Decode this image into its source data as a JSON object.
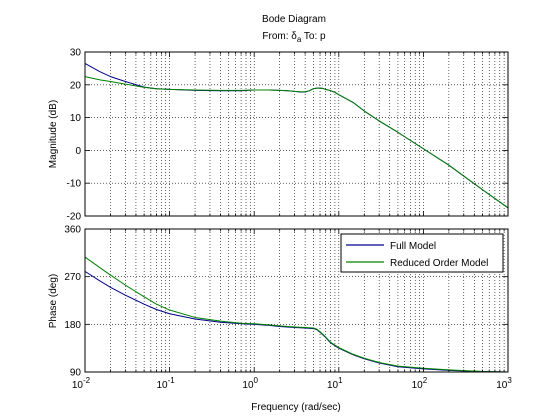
{
  "chart_data": [
    {
      "type": "line",
      "panel": "magnitude",
      "title": "Bode Diagram",
      "subtitle_prefix": "From: δ",
      "subtitle_subscript": "a",
      "subtitle_suffix": " To: p",
      "ylabel": "Magnitude (dB)",
      "xscale": "log",
      "xlim": [
        0.01,
        1000
      ],
      "ylim": [
        -20,
        30
      ],
      "yticks": [
        "30",
        "20",
        "10",
        "0",
        "-10",
        "-20"
      ],
      "grid": true,
      "series": [
        {
          "name": "Full Model",
          "color": "#00008b",
          "x": [
            0.01,
            0.015,
            0.02,
            0.03,
            0.05,
            0.07,
            0.1,
            0.2,
            0.4,
            0.7,
            1,
            1.5,
            2,
            2.5,
            3,
            3.5,
            4,
            4.5,
            5,
            5.5,
            6,
            6.5,
            7,
            8,
            9,
            10,
            15,
            20,
            30,
            50,
            100,
            200,
            500,
            1000
          ],
          "y": [
            26.5,
            24.0,
            22.5,
            21.0,
            19.3,
            18.8,
            18.6,
            18.3,
            18.2,
            18.2,
            18.4,
            18.4,
            18.3,
            18.2,
            18.0,
            17.8,
            17.8,
            18.2,
            18.8,
            19.0,
            19.0,
            18.9,
            18.6,
            18.2,
            17.7,
            17.0,
            14.5,
            12.0,
            9.0,
            5.5,
            0.5,
            -4.5,
            -12.0,
            -17.5
          ]
        },
        {
          "name": "Reduced Order Model",
          "color": "#008000",
          "x": [
            0.01,
            0.015,
            0.02,
            0.03,
            0.05,
            0.07,
            0.1,
            0.2,
            0.4,
            0.7,
            1,
            1.5,
            2,
            2.5,
            3,
            3.5,
            4,
            4.5,
            5,
            5.5,
            6,
            6.5,
            7,
            8,
            9,
            10,
            15,
            20,
            30,
            50,
            100,
            200,
            500,
            1000
          ],
          "y": [
            22.5,
            21.5,
            21.0,
            20.2,
            19.2,
            18.8,
            18.6,
            18.4,
            18.3,
            18.3,
            18.4,
            18.4,
            18.3,
            18.2,
            18.0,
            17.9,
            17.9,
            18.2,
            18.8,
            19.0,
            19.0,
            18.9,
            18.6,
            18.2,
            17.7,
            17.0,
            14.5,
            12.0,
            9.0,
            5.5,
            0.5,
            -4.5,
            -12.0,
            -17.5
          ]
        }
      ]
    },
    {
      "type": "line",
      "panel": "phase",
      "xlabel": "Frequency  (rad/sec)",
      "ylabel": "Phase (deg)",
      "xscale": "log",
      "xlim": [
        0.01,
        1000
      ],
      "ylim": [
        90,
        360
      ],
      "yticks": [
        "360",
        "270",
        "180",
        "90"
      ],
      "xticks_base": [
        "10",
        "10",
        "10",
        "10",
        "10",
        "10"
      ],
      "xticks_exp": [
        "-2",
        "-1",
        "0",
        "1",
        "2",
        "3"
      ],
      "grid": true,
      "legend_position": "top-right",
      "series": [
        {
          "name": "Full Model",
          "color": "#00008b",
          "x": [
            0.01,
            0.015,
            0.02,
            0.03,
            0.05,
            0.07,
            0.1,
            0.2,
            0.4,
            0.7,
            1,
            1.5,
            2,
            3,
            4,
            5,
            5.5,
            6,
            7,
            8,
            10,
            15,
            20,
            30,
            50,
            100,
            200,
            500,
            1000
          ],
          "y": [
            280,
            262,
            250,
            235,
            218,
            208,
            200,
            190,
            184,
            181,
            180,
            178,
            176,
            174,
            173,
            172,
            170,
            165,
            155,
            145,
            135,
            122,
            115,
            107,
            100,
            96,
            93,
            91,
            90
          ]
        },
        {
          "name": "Reduced Order Model",
          "color": "#008000",
          "x": [
            0.01,
            0.015,
            0.02,
            0.03,
            0.05,
            0.07,
            0.1,
            0.2,
            0.4,
            0.7,
            1,
            1.5,
            2,
            3,
            4,
            5,
            5.5,
            6,
            7,
            8,
            10,
            15,
            20,
            30,
            50,
            100,
            200,
            500,
            1000
          ],
          "y": [
            307,
            287,
            273,
            254,
            232,
            218,
            207,
            193,
            186,
            182,
            181,
            179,
            177,
            175,
            174,
            173,
            171,
            166,
            156,
            146,
            136,
            123,
            116,
            108,
            101,
            97,
            94,
            91,
            90
          ]
        }
      ]
    }
  ]
}
